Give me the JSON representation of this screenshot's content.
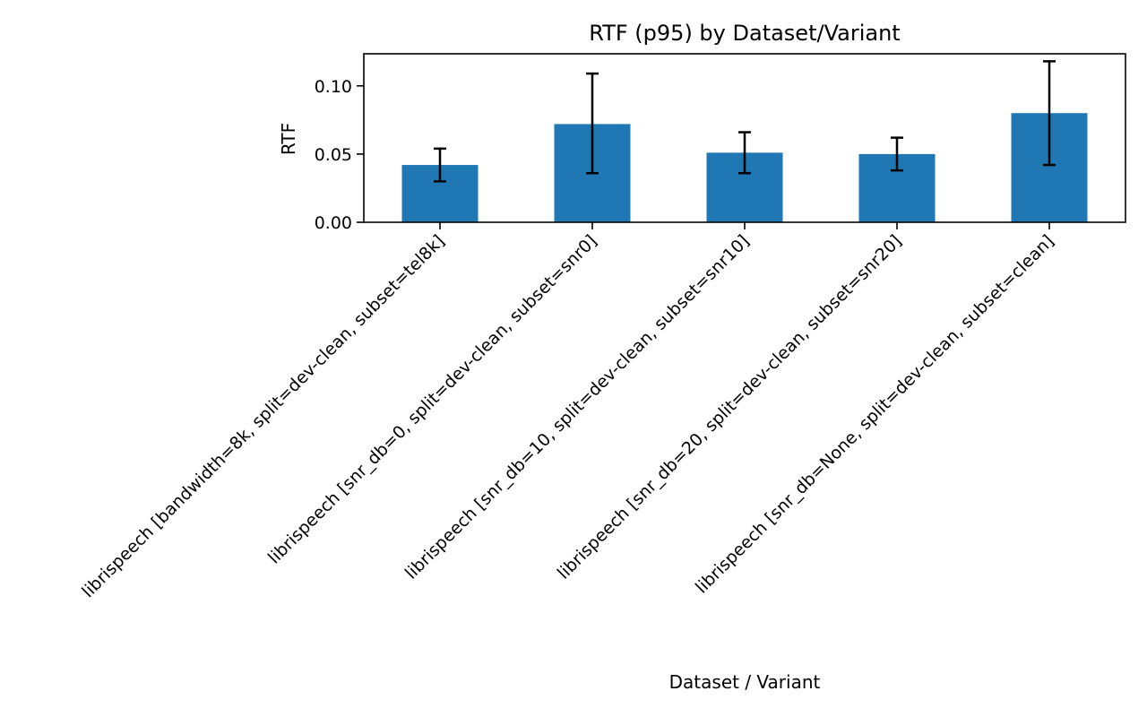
{
  "chart_data": {
    "type": "bar",
    "title": "RTF (p95) by Dataset/Variant",
    "xlabel": "Dataset / Variant",
    "ylabel": "RTF",
    "categories": [
      "librispeech [bandwidth=8k, split=dev-clean, subset=tel8k]",
      "librispeech [snr_db=0, split=dev-clean, subset=snr0]",
      "librispeech [snr_db=10, split=dev-clean, subset=snr10]",
      "librispeech [snr_db=20, split=dev-clean, subset=snr20]",
      "librispeech [snr_db=None, split=dev-clean, subset=clean]"
    ],
    "values": [
      0.042,
      0.072,
      0.051,
      0.05,
      0.08
    ],
    "error_low": [
      0.03,
      0.036,
      0.036,
      0.038,
      0.042
    ],
    "error_high": [
      0.054,
      0.109,
      0.066,
      0.062,
      0.118
    ],
    "ylim": [
      0,
      0.1235
    ],
    "yticks": [
      0.0,
      0.05,
      0.1
    ],
    "ytick_labels": [
      "0.00",
      "0.05",
      "0.10"
    ],
    "grid": false,
    "colors": {
      "bar": "#1f77b4",
      "error": "#000000",
      "axis": "#000000"
    }
  }
}
